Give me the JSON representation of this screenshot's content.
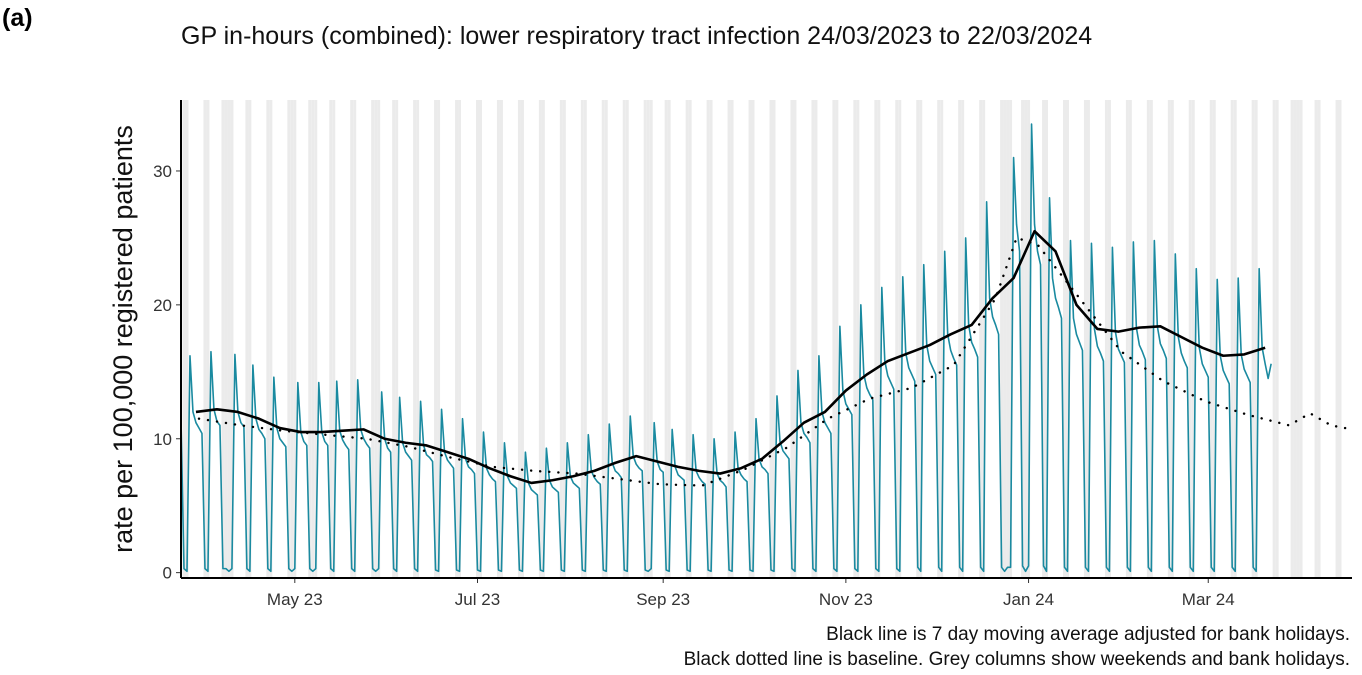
{
  "panel_label": "(a)",
  "chart_data": {
    "type": "line",
    "title": "GP in-hours (combined): lower respiratory tract infection 24/03/2023 to 22/03/2024",
    "y_label": "rate per 100,000 registered patients",
    "notes": [
      "Black line is 7 day moving average adjusted for bank holidays.",
      "Black dotted line is baseline. Grey columns show weekends and bank holidays."
    ],
    "xlim": [
      "2023-03-24",
      "2024-04-18"
    ],
    "xticks": [
      {
        "value": "2023-05-01",
        "label": "May 23"
      },
      {
        "value": "2023-07-01",
        "label": "Jul 23"
      },
      {
        "value": "2023-09-01",
        "label": "Sep 23"
      },
      {
        "value": "2023-11-01",
        "label": "Nov 23"
      },
      {
        "value": "2024-01-01",
        "label": "Jan 24"
      },
      {
        "value": "2024-03-01",
        "label": "Mar 24"
      }
    ],
    "ylim": [
      -0.4,
      35.3
    ],
    "yticks": [
      0,
      10,
      20,
      30
    ],
    "shade_weekends": true,
    "shade_color": "#ebebeb",
    "bank_holidays": [
      "2023-04-07",
      "2023-04-10",
      "2023-05-01",
      "2023-05-08",
      "2023-05-29",
      "2023-08-28",
      "2023-12-25",
      "2023-12-26",
      "2024-01-01",
      "2024-03-29",
      "2024-04-01"
    ],
    "series": [
      {
        "color": "#1a8aa0",
        "width": 1.6,
        "style": "solid",
        "x_start": "2023-03-24",
        "values": [
          11.5,
          0.3,
          0.1,
          16.2,
          12.0,
          11.2,
          10.8,
          10.4,
          0.3,
          0.1,
          16.5,
          12.2,
          11.3,
          11.0,
          0.3,
          0.3,
          0.1,
          0.3,
          16.3,
          12.0,
          11.2,
          10.9,
          0.3,
          0.1,
          15.5,
          11.5,
          10.7,
          10.4,
          10.0,
          0.3,
          0.1,
          14.6,
          10.8,
          10.0,
          9.7,
          9.4,
          0.3,
          0.1,
          0.3,
          14.2,
          10.5,
          9.8,
          9.5,
          0.3,
          0.1,
          0.3,
          14.2,
          10.5,
          9.8,
          9.5,
          0.3,
          0.1,
          14.3,
          10.6,
          9.9,
          9.5,
          9.2,
          0.3,
          0.1,
          14.4,
          10.7,
          10.0,
          9.6,
          9.3,
          0.3,
          0.1,
          0.3,
          13.5,
          10.0,
          9.3,
          9.0,
          0.3,
          0.1,
          13.1,
          9.7,
          9.0,
          8.7,
          8.4,
          0.3,
          0.1,
          12.8,
          9.5,
          8.8,
          8.6,
          8.3,
          0.2,
          0.1,
          12.2,
          9.0,
          8.4,
          8.1,
          7.8,
          0.2,
          0.1,
          11.5,
          8.5,
          7.9,
          7.7,
          7.4,
          0.2,
          0.1,
          10.5,
          7.8,
          7.3,
          7.0,
          6.8,
          0.2,
          0.1,
          9.7,
          7.2,
          6.7,
          6.5,
          6.3,
          0.2,
          0.1,
          9.0,
          6.7,
          6.2,
          6.0,
          5.8,
          0.2,
          0.1,
          9.3,
          6.9,
          6.4,
          6.2,
          6.0,
          0.2,
          0.1,
          9.7,
          7.2,
          6.7,
          6.5,
          6.3,
          0.2,
          0.1,
          10.3,
          7.6,
          7.1,
          6.8,
          6.6,
          0.2,
          0.1,
          11.1,
          8.2,
          7.6,
          7.4,
          7.1,
          0.2,
          0.1,
          11.7,
          8.7,
          8.1,
          7.8,
          7.6,
          0.2,
          0.1,
          0.3,
          11.2,
          8.3,
          7.7,
          7.5,
          0.2,
          0.1,
          10.7,
          7.9,
          7.3,
          7.1,
          6.9,
          0.2,
          0.1,
          10.3,
          7.6,
          7.1,
          6.8,
          6.6,
          0.2,
          0.1,
          10.0,
          7.4,
          6.9,
          6.7,
          6.4,
          0.2,
          0.1,
          10.5,
          7.8,
          7.3,
          7.0,
          6.8,
          0.2,
          0.1,
          11.5,
          8.5,
          7.9,
          7.7,
          7.4,
          0.2,
          0.1,
          13.2,
          9.8,
          9.1,
          8.8,
          8.5,
          0.3,
          0.1,
          15.1,
          11.2,
          10.4,
          10.1,
          9.7,
          0.3,
          0.1,
          16.2,
          12.0,
          11.2,
          10.8,
          10.4,
          0.3,
          0.1,
          18.4,
          13.6,
          12.6,
          12.2,
          11.8,
          0.3,
          0.1,
          20.0,
          14.8,
          13.8,
          13.3,
          12.9,
          0.3,
          0.1,
          21.3,
          15.8,
          14.7,
          14.2,
          13.7,
          0.3,
          0.1,
          22.1,
          16.4,
          15.3,
          14.8,
          14.3,
          0.4,
          0.1,
          23.0,
          17.0,
          15.8,
          15.3,
          14.8,
          0.4,
          0.1,
          24.0,
          17.8,
          16.6,
          16.0,
          15.5,
          0.4,
          0.1,
          25.0,
          18.5,
          17.2,
          16.7,
          16.1,
          0.4,
          0.1,
          27.7,
          20.5,
          19.1,
          18.5,
          17.8,
          0.4,
          0.1,
          0.4,
          0.4,
          31.0,
          26.0,
          24.0,
          0.5,
          0.1,
          0.5,
          33.5,
          26.0,
          24.0,
          23.0,
          0.5,
          0.1,
          28.0,
          22.0,
          20.5,
          19.8,
          19.0,
          0.4,
          0.1,
          24.8,
          19.0,
          17.8,
          17.2,
          16.6,
          0.4,
          0.1,
          24.6,
          18.2,
          16.9,
          16.4,
          15.8,
          0.4,
          0.1,
          24.3,
          18.0,
          16.7,
          16.2,
          15.7,
          0.4,
          0.1,
          24.7,
          18.3,
          17.0,
          16.5,
          15.9,
          0.4,
          0.1,
          24.8,
          18.4,
          17.1,
          16.6,
          16.0,
          0.4,
          0.1,
          23.8,
          17.6,
          16.4,
          15.8,
          15.3,
          0.4,
          0.1,
          22.7,
          16.8,
          15.6,
          15.1,
          14.6,
          0.4,
          0.1,
          21.9,
          16.2,
          15.1,
          14.6,
          14.1,
          0.4,
          0.1,
          22.0,
          16.3,
          15.2,
          14.7,
          14.2,
          0.4,
          0.1,
          22.7,
          16.8,
          15.6,
          14.5,
          15.6
        ]
      },
      {
        "color": "#000000",
        "width": 2.6,
        "style": "solid",
        "x": [
          "2023-03-29",
          "2023-04-05",
          "2023-04-12",
          "2023-04-19",
          "2023-04-26",
          "2023-05-03",
          "2023-05-10",
          "2023-05-17",
          "2023-05-24",
          "2023-05-31",
          "2023-06-07",
          "2023-06-14",
          "2023-06-21",
          "2023-06-28",
          "2023-07-05",
          "2023-07-12",
          "2023-07-19",
          "2023-07-26",
          "2023-08-02",
          "2023-08-09",
          "2023-08-16",
          "2023-08-23",
          "2023-08-30",
          "2023-09-06",
          "2023-09-13",
          "2023-09-20",
          "2023-09-27",
          "2023-10-04",
          "2023-10-11",
          "2023-10-18",
          "2023-10-25",
          "2023-11-01",
          "2023-11-08",
          "2023-11-15",
          "2023-11-22",
          "2023-11-29",
          "2023-12-06",
          "2023-12-13",
          "2023-12-20",
          "2023-12-27",
          "2024-01-03",
          "2024-01-10",
          "2024-01-17",
          "2024-01-24",
          "2024-01-31",
          "2024-02-07",
          "2024-02-14",
          "2024-02-21",
          "2024-02-28",
          "2024-03-06",
          "2024-03-13",
          "2024-03-20"
        ],
        "values": [
          12.0,
          12.2,
          12.0,
          11.5,
          10.8,
          10.5,
          10.5,
          10.6,
          10.7,
          10.0,
          9.7,
          9.5,
          9.0,
          8.5,
          7.8,
          7.2,
          6.7,
          6.9,
          7.2,
          7.6,
          8.2,
          8.7,
          8.3,
          7.9,
          7.6,
          7.4,
          7.8,
          8.5,
          9.8,
          11.2,
          12.0,
          13.6,
          14.8,
          15.8,
          16.4,
          17.0,
          17.8,
          18.5,
          20.5,
          22.0,
          25.5,
          24.0,
          20.0,
          18.2,
          18.0,
          18.3,
          18.4,
          17.6,
          16.8,
          16.2,
          16.3,
          16.8
        ]
      },
      {
        "color": "#000000",
        "width": 2.4,
        "style": "dotted",
        "x": [
          "2023-03-30",
          "2023-04-13",
          "2023-04-27",
          "2023-05-11",
          "2023-05-25",
          "2023-06-08",
          "2023-06-22",
          "2023-07-06",
          "2023-07-20",
          "2023-08-03",
          "2023-08-17",
          "2023-08-31",
          "2023-09-14",
          "2023-09-28",
          "2023-10-12",
          "2023-10-26",
          "2023-11-09",
          "2023-11-23",
          "2023-12-07",
          "2023-12-21",
          "2023-12-28",
          "2024-01-04",
          "2024-01-18",
          "2024-02-01",
          "2024-02-15",
          "2024-02-29",
          "2024-03-14",
          "2024-03-28",
          "2024-04-04",
          "2024-04-11",
          "2024-04-18"
        ],
        "values": [
          11.5,
          11.0,
          10.6,
          10.3,
          10.0,
          9.4,
          8.6,
          7.9,
          7.6,
          7.4,
          7.0,
          6.6,
          6.5,
          7.7,
          9.3,
          11.5,
          13.0,
          13.8,
          15.5,
          20.5,
          25.0,
          24.5,
          20.5,
          16.5,
          14.3,
          12.8,
          11.8,
          11.0,
          11.9,
          11.0,
          10.7
        ]
      }
    ]
  }
}
